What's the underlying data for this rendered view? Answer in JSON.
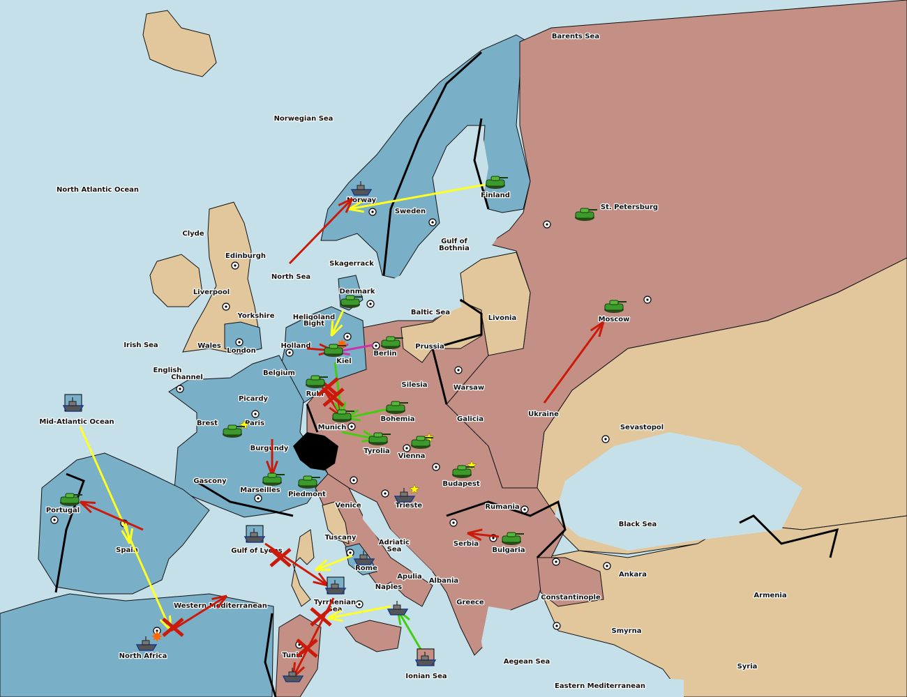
{
  "colors": {
    "sea": "#c6e0ea",
    "blue_power": "#7aafc8",
    "red_power": "#c48f85",
    "neutral": "#e2c69c",
    "move_yellow": "#ffff22",
    "move_red": "#cc1a0a",
    "support_green": "#44cc11",
    "move_magenta": "#cc33aa"
  },
  "labels": [
    "Barents Sea",
    "Norwegian Sea",
    "North Atlantic Ocean",
    "Norway",
    "Sweden",
    "Finland",
    "St. Petersburg",
    "Clyde",
    "Edinburgh",
    "Gulf of",
    "Bothnia",
    "North Sea",
    "Skagerrack",
    "Liverpool",
    "Denmark",
    "Baltic Sea",
    "Livonia",
    "Moscow",
    "Yorkshire",
    "Heligoland",
    "Bight",
    "Irish Sea",
    "Wales",
    "London",
    "Holland",
    "Prussia",
    "Berlin",
    "Kiel",
    "English",
    "Channel",
    "Belgium",
    "Silesia",
    "Warsaw",
    "Picardy",
    "Ruhr",
    "Ukraine",
    "Mid-Atlantic Ocean",
    "Brest",
    "Paris",
    "Bohemia",
    "Galicia",
    "Munich",
    "Sevastopol",
    "Burgundy",
    "Tyrolia",
    "Vienna",
    "Gascony",
    "Budapest",
    "Marseilles",
    "Piedmont",
    "Venice",
    "Trieste",
    "Rumania",
    "Portugal",
    "Black Sea",
    "Tuscany",
    "Adriatic",
    "Sea",
    "Serbia",
    "Bulgaria",
    "Gulf of Lyons",
    "Spain",
    "Rome",
    "Apulia",
    "Ankara",
    "Albania",
    "Naples",
    "Constantinople",
    "Armenia",
    "Tyrrhenian",
    "Sea",
    "Western Mediterranean",
    "Greece",
    "Smyrna",
    "North Africa",
    "Tunis",
    "Aegean Sea",
    "Syria",
    "Ionian Sea",
    "Eastern Mediterranean"
  ],
  "units": [
    {
      "type": "army",
      "province": "Finland",
      "owner": "red"
    },
    {
      "type": "army",
      "province": "St. Petersburg",
      "owner": "red"
    },
    {
      "type": "army",
      "province": "Moscow",
      "owner": "red"
    },
    {
      "type": "army",
      "province": "Denmark",
      "owner": "blue"
    },
    {
      "type": "army",
      "province": "Kiel",
      "owner": "blue"
    },
    {
      "type": "army",
      "province": "Berlin",
      "owner": "red"
    },
    {
      "type": "army",
      "province": "Ruhr",
      "owner": "red"
    },
    {
      "type": "army",
      "province": "Munich",
      "owner": "red"
    },
    {
      "type": "army",
      "province": "Bohemia",
      "owner": "red"
    },
    {
      "type": "army",
      "province": "Tyrolia",
      "owner": "red"
    },
    {
      "type": "army",
      "province": "Vienna",
      "owner": "red"
    },
    {
      "type": "army",
      "province": "Budapest",
      "owner": "red"
    },
    {
      "type": "army",
      "province": "Bulgaria",
      "owner": "red"
    },
    {
      "type": "army",
      "province": "Marseilles",
      "owner": "blue"
    },
    {
      "type": "army",
      "province": "Piedmont",
      "owner": "red"
    },
    {
      "type": "army",
      "province": "Paris",
      "owner": "blue"
    },
    {
      "type": "army",
      "province": "Portugal",
      "owner": "blue"
    },
    {
      "type": "fleet",
      "province": "Norway",
      "owner": "blue"
    },
    {
      "type": "fleet",
      "province": "Rome",
      "owner": "blue"
    },
    {
      "type": "fleet",
      "province": "Trieste",
      "owner": "blue"
    },
    {
      "type": "fleet",
      "province": "Naples",
      "owner": "blue"
    },
    {
      "type": "fleet",
      "province": "North Africa",
      "owner": "blue"
    },
    {
      "type": "fleet",
      "province": "Tunis",
      "owner": "blue"
    },
    {
      "type": "fleet",
      "province": "Gulf of Lyons",
      "owner": "blue"
    },
    {
      "type": "fleet",
      "province": "Tyrrhenian Sea",
      "owner": "blue"
    },
    {
      "type": "fleet",
      "province": "Ionian Sea",
      "owner": "red"
    },
    {
      "type": "fleet",
      "province": "Mid-Atlantic Ocean",
      "owner": "blue"
    }
  ]
}
